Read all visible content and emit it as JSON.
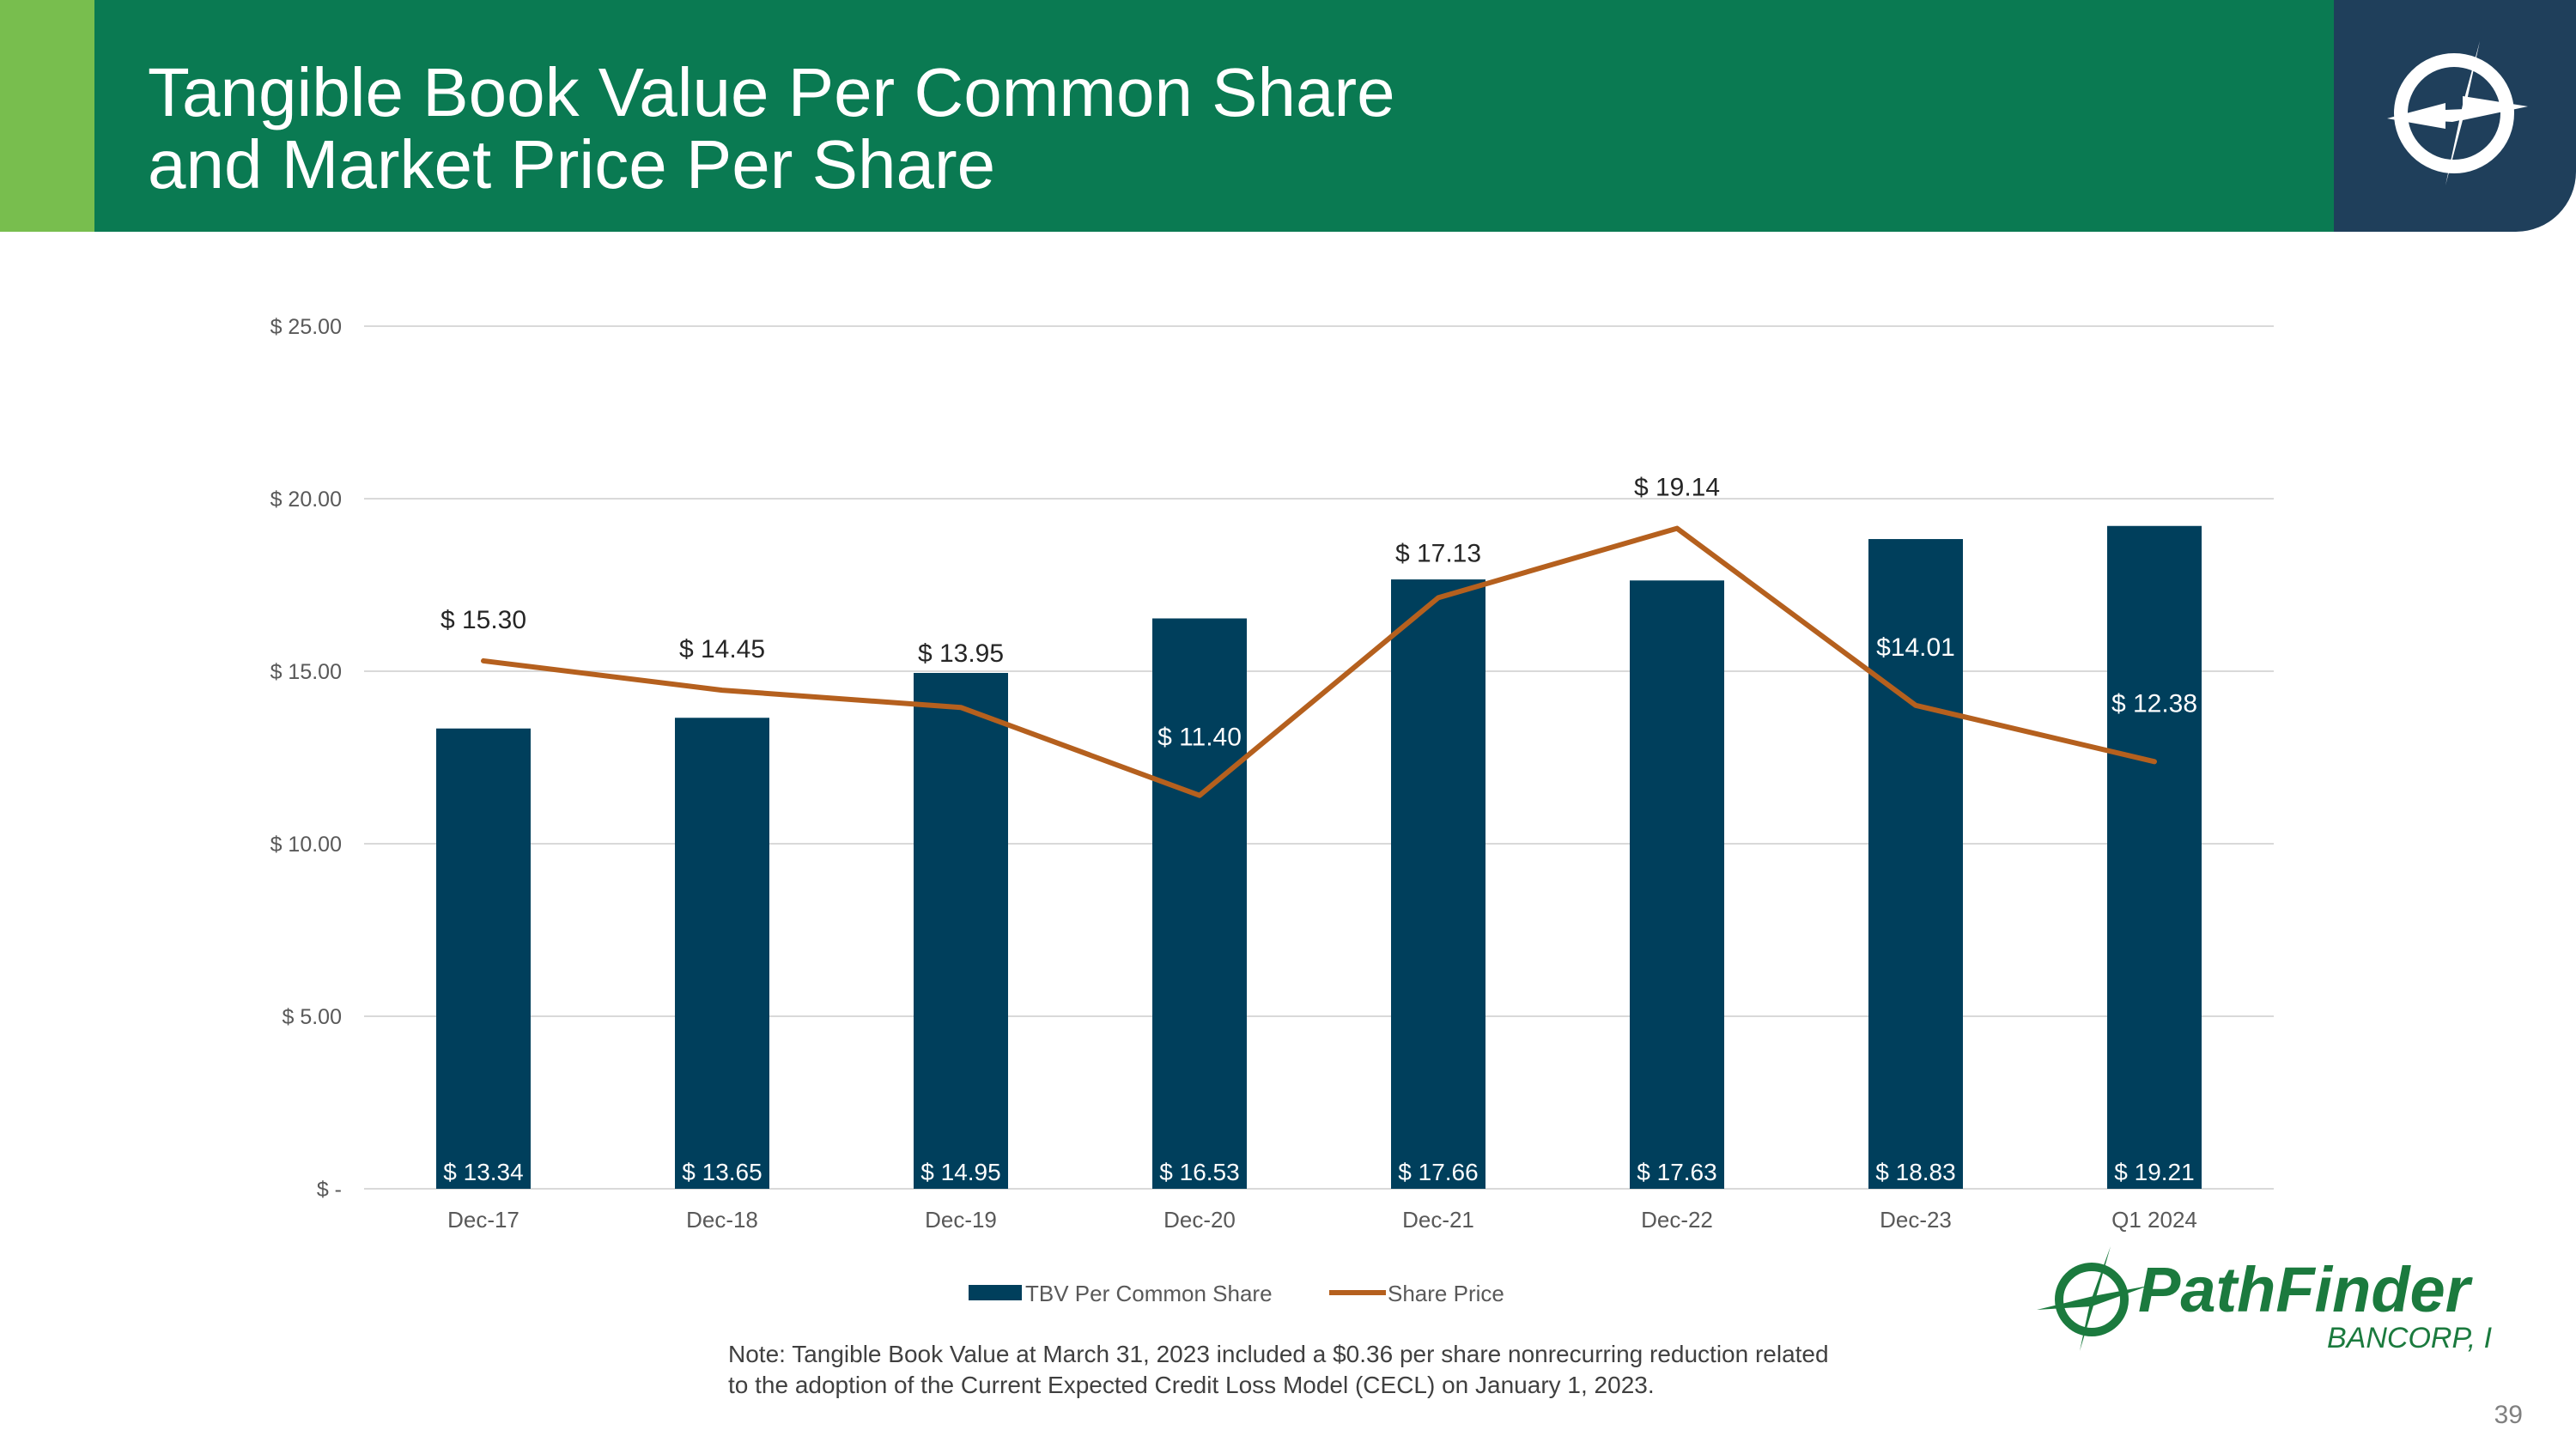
{
  "slide": {
    "title_line1": "Tangible Book Value Per Common Share",
    "title_line2": "and Market Price Per Share",
    "note_line1": "Note: Tangible Book Value at March 31, 2023 included a $0.36 per share nonrecurring reduction related",
    "note_line2": "to the adoption of the Current Expected Credit Loss Model (CECL) on January 1, 2023.",
    "brand_name": "PathFinder",
    "brand_sub": "BANCORP, INC.",
    "page_number": "39"
  },
  "colors": {
    "header_green": "#0A7A52",
    "accent_green": "#78BE4E",
    "logo_navy": "#1F3F5B",
    "bar_color": "#003F5C",
    "line_color": "#B5601E",
    "brand_green": "#1B7A3E"
  },
  "chart_data": {
    "type": "bar",
    "title": "",
    "categories": [
      "Dec-17",
      "Dec-18",
      "Dec-19",
      "Dec-20",
      "Dec-21",
      "Dec-22",
      "Dec-23",
      "Q1 2024"
    ],
    "series": [
      {
        "name": "TBV Per Common Share",
        "type": "bar",
        "values": [
          13.34,
          13.65,
          14.95,
          16.53,
          17.66,
          17.63,
          18.83,
          19.21
        ],
        "labels": [
          "$ 13.34",
          "$ 13.65",
          "$ 14.95",
          "$ 16.53",
          "$ 17.66",
          "$ 17.63",
          "$ 18.83",
          "$ 19.21"
        ]
      },
      {
        "name": "Share Price",
        "type": "line",
        "values": [
          15.3,
          14.45,
          13.95,
          11.4,
          17.13,
          19.14,
          14.01,
          12.38
        ],
        "labels": [
          "$ 15.30",
          "$ 14.45",
          "$ 13.95",
          "$ 11.40",
          "$ 17.13",
          "$ 19.14",
          "$14.01",
          "$ 12.38"
        ]
      }
    ],
    "y_ticks": [
      0,
      5,
      10,
      15,
      20,
      25
    ],
    "y_tick_labels": [
      "$ -",
      "$ 5.00",
      "$ 10.00",
      "$ 15.00",
      "$ 20.00",
      "$ 25.00"
    ],
    "ylim": [
      0,
      25
    ],
    "xlabel": "",
    "ylabel": "",
    "grid": true,
    "legend_position": "bottom"
  }
}
